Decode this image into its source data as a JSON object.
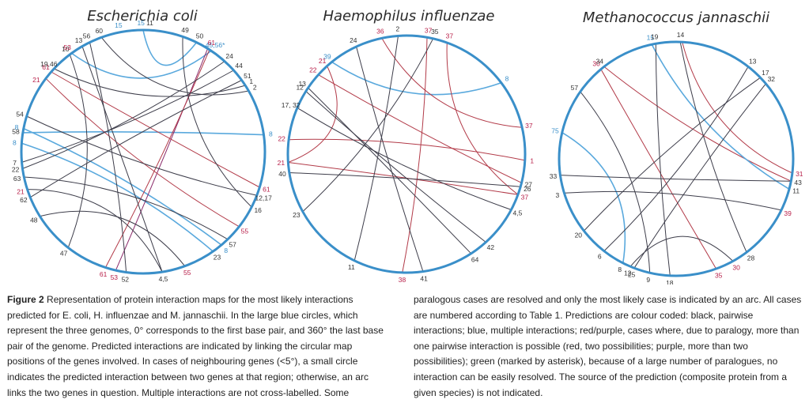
{
  "colors": {
    "circle": "#3a8fc9",
    "black_arc": "#3d3d4a",
    "blue_arc": "#5aa9dd",
    "red_arc": "#b23a48",
    "purple_arc": "#8a2a6a",
    "black_label": "#333333",
    "blue_label": "#3a8fc9",
    "red_label": "#b8204a"
  },
  "panels": [
    {
      "id": "ecoli",
      "title": "Escherichia coli",
      "labels": [
        {
          "t": "15",
          "a": 359,
          "c": "blue"
        },
        {
          "t": "11",
          "a": 3,
          "c": "black"
        },
        {
          "t": "49",
          "a": 19,
          "c": "black"
        },
        {
          "t": "50",
          "a": 26,
          "c": "black"
        },
        {
          "t": "45,56*",
          "a": 34,
          "c": "blue"
        },
        {
          "t": "61",
          "a": 32,
          "c": "red"
        },
        {
          "t": "24",
          "a": 42,
          "c": "black"
        },
        {
          "t": "44",
          "a": 48,
          "c": "black"
        },
        {
          "t": "51",
          "a": 54,
          "c": "black"
        },
        {
          "t": "1",
          "a": 57,
          "c": "black"
        },
        {
          "t": "2",
          "a": 60,
          "c": "black"
        },
        {
          "t": "8",
          "a": 82,
          "c": "blue"
        },
        {
          "t": "61",
          "a": 107,
          "c": "red"
        },
        {
          "t": "12,17",
          "a": 111,
          "c": "black"
        },
        {
          "t": "16",
          "a": 117,
          "c": "black"
        },
        {
          "t": "55",
          "a": 128,
          "c": "red"
        },
        {
          "t": "57",
          "a": 136,
          "c": "black"
        },
        {
          "t": "8",
          "a": 140,
          "c": "blue"
        },
        {
          "t": "23",
          "a": 145,
          "c": "black"
        },
        {
          "t": "55",
          "a": 160,
          "c": "red"
        },
        {
          "t": "4,5",
          "a": 171,
          "c": "black"
        },
        {
          "t": "52",
          "a": 188,
          "c": "black"
        },
        {
          "t": "53",
          "a": 193,
          "c": "red"
        },
        {
          "t": "61",
          "a": 198,
          "c": "red"
        },
        {
          "t": "47",
          "a": 218,
          "c": "black"
        },
        {
          "t": "48",
          "a": 238,
          "c": "black"
        },
        {
          "t": "62",
          "a": 248,
          "c": "black"
        },
        {
          "t": "21",
          "a": 252,
          "c": "red"
        },
        {
          "t": "63",
          "a": 258,
          "c": "black"
        },
        {
          "t": "22",
          "a": 262,
          "c": "black"
        },
        {
          "t": "7",
          "a": 265,
          "c": "black"
        },
        {
          "t": "8",
          "a": 274,
          "c": "blue"
        },
        {
          "t": "58",
          "a": 279,
          "c": "black"
        },
        {
          "t": "8",
          "a": 281,
          "c": "blue"
        },
        {
          "t": "54",
          "a": 287,
          "c": "black"
        },
        {
          "t": "21",
          "a": 304,
          "c": "red"
        },
        {
          "t": "61",
          "a": 311,
          "c": "red"
        },
        {
          "t": "19,46",
          "a": 313,
          "c": "black"
        },
        {
          "t": "10",
          "a": 323,
          "c": "black"
        },
        {
          "t": "53",
          "a": 324,
          "c": "red"
        },
        {
          "t": "13",
          "a": 330,
          "c": "black"
        },
        {
          "t": "56",
          "a": 334,
          "c": "black"
        },
        {
          "t": "60",
          "a": 340,
          "c": "black"
        },
        {
          "t": "15",
          "a": 349,
          "c": "blue"
        }
      ],
      "arcs": [
        {
          "a": 0,
          "b": 26,
          "c": "blue"
        },
        {
          "a": 82,
          "b": 279,
          "c": "blue"
        },
        {
          "a": 281,
          "b": 140,
          "c": "blue"
        },
        {
          "a": 274,
          "b": 145,
          "c": "blue"
        },
        {
          "a": 324,
          "b": 34,
          "c": "blue"
        },
        {
          "a": 32,
          "b": 193,
          "c": "purple"
        },
        {
          "a": 33,
          "b": 198,
          "c": "red"
        },
        {
          "a": 307,
          "b": 128,
          "c": "red"
        },
        {
          "a": 311,
          "b": 107,
          "c": "red"
        },
        {
          "a": 330,
          "b": 171,
          "c": "black"
        },
        {
          "a": 323,
          "b": 218,
          "c": "black"
        },
        {
          "a": 334,
          "b": 188,
          "c": "black"
        },
        {
          "a": 340,
          "b": 60,
          "c": "black"
        },
        {
          "a": 287,
          "b": 111,
          "c": "black"
        },
        {
          "a": 313,
          "b": 57,
          "c": "black"
        },
        {
          "a": 262,
          "b": 42,
          "c": "black"
        },
        {
          "a": 258,
          "b": 136,
          "c": "black"
        },
        {
          "a": 248,
          "b": 54,
          "c": "black"
        },
        {
          "a": 238,
          "b": 160,
          "c": "black"
        },
        {
          "a": 265,
          "b": 48,
          "c": "black"
        },
        {
          "a": 19,
          "b": 117,
          "c": "black"
        },
        {
          "a": 252,
          "b": 171,
          "c": "black"
        }
      ]
    },
    {
      "id": "hinfluenzae",
      "title": "Haemophilus influenzae",
      "labels": [
        {
          "t": "24",
          "a": 335,
          "c": "black"
        },
        {
          "t": "36",
          "a": 348,
          "c": "red"
        },
        {
          "t": "2",
          "a": 356,
          "c": "black"
        },
        {
          "t": "37",
          "a": 10,
          "c": "red"
        },
        {
          "t": "35",
          "a": 13,
          "c": "black"
        },
        {
          "t": "37",
          "a": 20,
          "c": "red"
        },
        {
          "t": "8",
          "a": 53,
          "c": "blue"
        },
        {
          "t": "37",
          "a": 77,
          "c": "red"
        },
        {
          "t": "1",
          "a": 93,
          "c": "red"
        },
        {
          "t": "27",
          "a": 104,
          "c": "black"
        },
        {
          "t": "26",
          "a": 106,
          "c": "black"
        },
        {
          "t": "37",
          "a": 110,
          "c": "red"
        },
        {
          "t": "4,5",
          "a": 118,
          "c": "black"
        },
        {
          "t": "42",
          "a": 138,
          "c": "black"
        },
        {
          "t": "64",
          "a": 147,
          "c": "black"
        },
        {
          "t": "41",
          "a": 172,
          "c": "black"
        },
        {
          "t": "38",
          "a": 182,
          "c": "red"
        },
        {
          "t": "11",
          "a": 206,
          "c": "black"
        },
        {
          "t": "23",
          "a": 241,
          "c": "black"
        },
        {
          "t": "40",
          "a": 261,
          "c": "black"
        },
        {
          "t": "21",
          "a": 266,
          "c": "red"
        },
        {
          "t": "22",
          "a": 277,
          "c": "red"
        },
        {
          "t": "17, 32",
          "a": 293,
          "c": "black"
        },
        {
          "t": "13",
          "a": 304,
          "c": "black"
        },
        {
          "t": "12",
          "a": 302,
          "c": "black"
        },
        {
          "t": "22",
          "a": 312,
          "c": "red"
        },
        {
          "t": "21",
          "a": 318,
          "c": "red"
        },
        {
          "t": "39",
          "a": 321,
          "c": "blue"
        }
      ],
      "arcs": [
        {
          "a": 321,
          "b": 53,
          "c": "blue"
        },
        {
          "a": 348,
          "b": 77,
          "c": "red"
        },
        {
          "a": 10,
          "b": 182,
          "c": "red"
        },
        {
          "a": 20,
          "b": 110,
          "c": "red"
        },
        {
          "a": 266,
          "b": 110,
          "c": "red"
        },
        {
          "a": 277,
          "b": 93,
          "c": "red"
        },
        {
          "a": 312,
          "b": 104,
          "c": "red"
        },
        {
          "a": 318,
          "b": 266,
          "c": "red"
        },
        {
          "a": 335,
          "b": 172,
          "c": "black"
        },
        {
          "a": 356,
          "b": 206,
          "c": "black"
        },
        {
          "a": 13,
          "b": 241,
          "c": "black"
        },
        {
          "a": 304,
          "b": 147,
          "c": "black"
        },
        {
          "a": 302,
          "b": 138,
          "c": "black"
        },
        {
          "a": 293,
          "b": 118,
          "c": "black"
        },
        {
          "a": 261,
          "b": 106,
          "c": "black"
        }
      ]
    },
    {
      "id": "mjannaschii",
      "title": "Methanococcus jannaschii",
      "labels": [
        {
          "t": "30",
          "a": 320,
          "c": "red"
        },
        {
          "t": "34",
          "a": 322,
          "c": "black"
        },
        {
          "t": "57",
          "a": 305,
          "c": "black"
        },
        {
          "t": "15",
          "a": 348,
          "c": "blue"
        },
        {
          "t": "19",
          "a": 350,
          "c": "black"
        },
        {
          "t": "14",
          "a": 2,
          "c": "black"
        },
        {
          "t": "13",
          "a": 38,
          "c": "black"
        },
        {
          "t": "17",
          "a": 46,
          "c": "black"
        },
        {
          "t": "32",
          "a": 50,
          "c": "black"
        },
        {
          "t": "75",
          "a": 283,
          "c": "blue"
        },
        {
          "t": "31",
          "a": 97,
          "c": "red"
        },
        {
          "t": "43",
          "a": 101,
          "c": "black"
        },
        {
          "t": "11",
          "a": 105,
          "c": "black"
        },
        {
          "t": "39",
          "a": 116,
          "c": "red"
        },
        {
          "t": "33",
          "a": 262,
          "c": "black"
        },
        {
          "t": "3",
          "a": 253,
          "c": "black"
        },
        {
          "t": "20",
          "a": 232,
          "c": "black"
        },
        {
          "t": "28",
          "a": 143,
          "c": "black"
        },
        {
          "t": "6",
          "a": 218,
          "c": "black"
        },
        {
          "t": "8",
          "a": 207,
          "c": "black"
        },
        {
          "t": "12",
          "a": 203,
          "c": "black"
        },
        {
          "t": "25",
          "a": 201,
          "c": "black"
        },
        {
          "t": "9",
          "a": 193,
          "c": "black"
        },
        {
          "t": "18",
          "a": 183,
          "c": "black"
        },
        {
          "t": "35",
          "a": 160,
          "c": "red"
        },
        {
          "t": "30",
          "a": 151,
          "c": "red"
        }
      ],
      "arcs": [
        {
          "a": 3,
          "b": 97,
          "c": "red"
        },
        {
          "a": 320,
          "b": 160,
          "c": "red"
        },
        {
          "a": 322,
          "b": 101,
          "c": "red"
        },
        {
          "a": 348,
          "b": 105,
          "c": "blue"
        },
        {
          "a": 283,
          "b": 207,
          "c": "blue"
        },
        {
          "a": 350,
          "b": 183,
          "c": "black"
        },
        {
          "a": 2,
          "b": 143,
          "c": "black"
        },
        {
          "a": 38,
          "b": 218,
          "c": "black"
        },
        {
          "a": 46,
          "b": 232,
          "c": "black"
        },
        {
          "a": 262,
          "b": 101,
          "c": "black"
        },
        {
          "a": 253,
          "b": 116,
          "c": "black"
        },
        {
          "a": 305,
          "b": 193,
          "c": "black"
        },
        {
          "a": 203,
          "b": 151,
          "c": "black"
        },
        {
          "a": 201,
          "b": 50,
          "c": "black"
        }
      ]
    }
  ],
  "caption": {
    "label": "Figure 2",
    "left": "Representation of protein interaction maps for the most likely interactions predicted for E. coli, H. influenzae and M. jannaschii. In the large blue circles, which represent the three genomes, 0° corresponds to the first base pair, and 360° the last base pair of the genome. Predicted interactions are indicated by linking the circular map positions of the genes involved. In cases of neighbouring genes (<5°), a small circle indicates the predicted interaction between two genes at that region; otherwise, an arc links the two genes in question. Multiple interactions are not cross-labelled. Some",
    "right": "paralogous cases are resolved and only the most likely case is indicated by an arc. All cases are numbered according to Table 1. Predictions are colour coded: black, pairwise interactions; blue, multiple interactions; red/purple, cases where, due to paralogy, more than one pairwise interaction is possible (red, two possibilities; purple, more than two possibilities); green (marked by asterisk), because of a large number of paralogues, no interaction can be easily resolved. The source of the prediction (composite protein from a given species) is not indicated."
  }
}
